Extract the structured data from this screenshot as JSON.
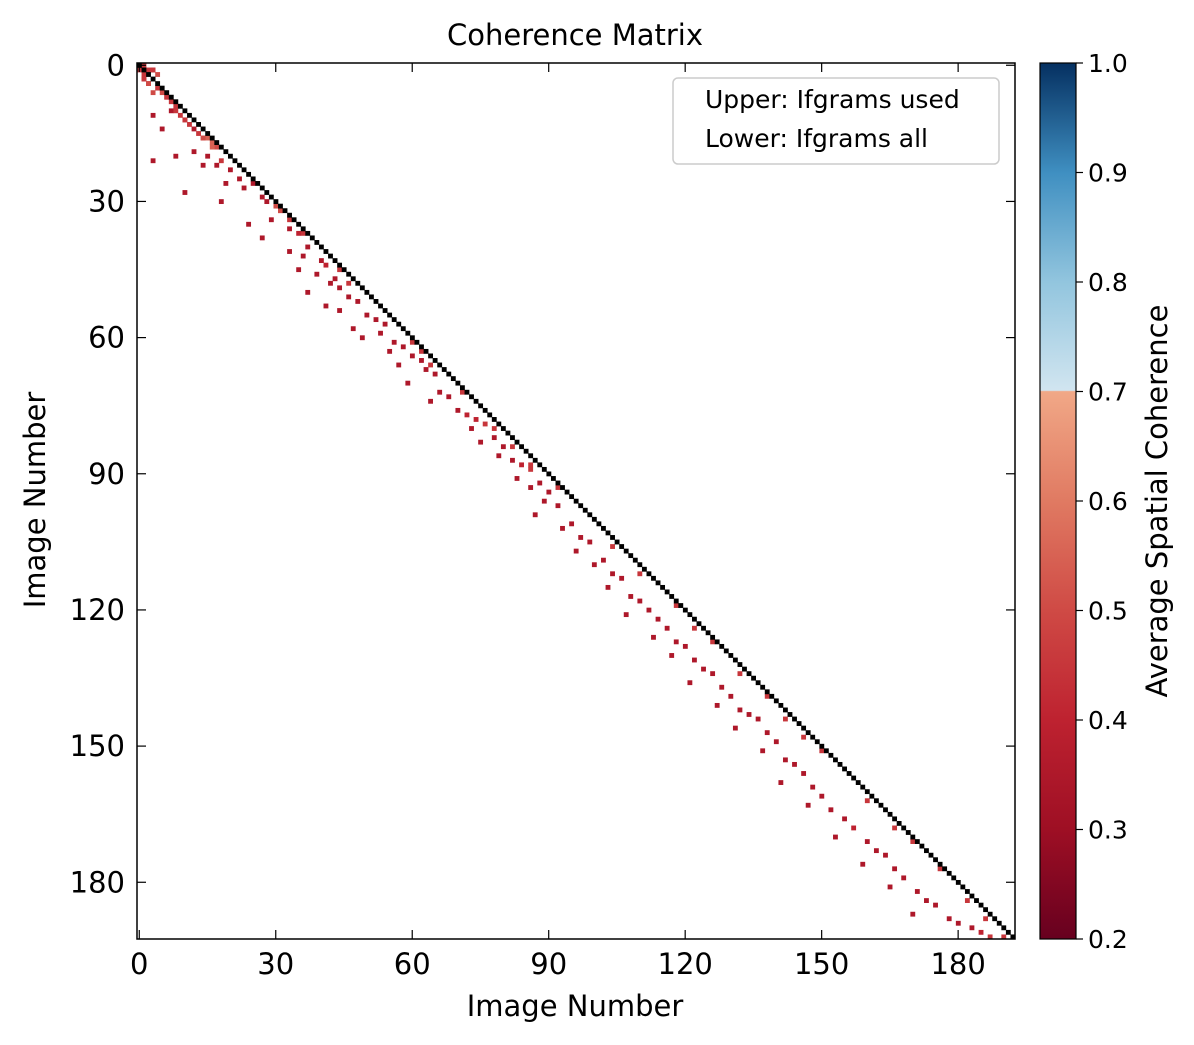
{
  "chart_data": {
    "type": "heatmap",
    "title": "Coherence Matrix",
    "xlabel": "Image Number",
    "ylabel": "Image Number",
    "n": 193,
    "xticks": [
      0,
      30,
      60,
      90,
      120,
      150,
      180
    ],
    "yticks": [
      0,
      30,
      60,
      90,
      120,
      150,
      180
    ],
    "legend": {
      "placement": "top-right",
      "entries": [
        "Upper: Ifgrams used",
        "Lower: Ifgrams all"
      ]
    },
    "colorbar": {
      "label": "Average Spatial Coherence",
      "range": [
        0.2,
        1.0
      ],
      "ticks": [
        "0.2",
        "0.3",
        "0.4",
        "0.5",
        "0.6",
        "0.7",
        "0.8",
        "0.9",
        "1.0"
      ],
      "stops": [
        {
          "v": 0.2,
          "color": "#67001f"
        },
        {
          "v": 0.3,
          "color": "#9e0f24"
        },
        {
          "v": 0.4,
          "color": "#be2230"
        },
        {
          "v": 0.5,
          "color": "#cf4a45"
        },
        {
          "v": 0.6,
          "color": "#e07a62"
        },
        {
          "v": 0.7,
          "color": "#f1a887"
        },
        {
          "v": 0.701,
          "color": "#d1e5f0"
        },
        {
          "v": 0.8,
          "color": "#92c5de"
        },
        {
          "v": 0.9,
          "color": "#3f8fc1"
        },
        {
          "v": 1.0,
          "color": "#053061"
        }
      ]
    },
    "diagonal_color": "#000000",
    "cells": [
      [
        1,
        0,
        0.45
      ],
      [
        2,
        1,
        0.45
      ],
      [
        3,
        1,
        0.45
      ],
      [
        4,
        2,
        0.5
      ],
      [
        1,
        3,
        0.45
      ],
      [
        2,
        4,
        0.45
      ],
      [
        4,
        5,
        0.45
      ],
      [
        3,
        6,
        0.5
      ],
      [
        5,
        6,
        0.5
      ],
      [
        6,
        7,
        0.45
      ],
      [
        7,
        8,
        0.45
      ],
      [
        8,
        9,
        0.45
      ],
      [
        7,
        10,
        0.35
      ],
      [
        9,
        11,
        0.45
      ],
      [
        3,
        11,
        0.35
      ],
      [
        10,
        12,
        0.35
      ],
      [
        11,
        13,
        0.45
      ],
      [
        5,
        14,
        0.35
      ],
      [
        12,
        14,
        0.35
      ],
      [
        13,
        15,
        0.45
      ],
      [
        14,
        16,
        0.5
      ],
      [
        15,
        16,
        0.55
      ],
      [
        16,
        17,
        0.55
      ],
      [
        17,
        18,
        0.5
      ],
      [
        12,
        19,
        0.35
      ],
      [
        15,
        20,
        0.35
      ],
      [
        8,
        20,
        0.35
      ],
      [
        3,
        21,
        0.35
      ],
      [
        14,
        22,
        0.35
      ],
      [
        17,
        22,
        0.35
      ],
      [
        18,
        21,
        0.45
      ],
      [
        20,
        23,
        0.35
      ],
      [
        22,
        25,
        0.35
      ],
      [
        25,
        26,
        0.35
      ],
      [
        19,
        26,
        0.35
      ],
      [
        23,
        27,
        0.35
      ],
      [
        10,
        28,
        0.35
      ],
      [
        27,
        29,
        0.35
      ],
      [
        18,
        30,
        0.35
      ],
      [
        28,
        30,
        0.35
      ],
      [
        30,
        31,
        0.5
      ],
      [
        31,
        32,
        0.5
      ],
      [
        29,
        34,
        0.35
      ],
      [
        24,
        35,
        0.35
      ],
      [
        33,
        36,
        0.35
      ],
      [
        35,
        37,
        0.4
      ],
      [
        27,
        38,
        0.35
      ],
      [
        37,
        40,
        0.35
      ],
      [
        33,
        41,
        0.35
      ],
      [
        36,
        42,
        0.35
      ],
      [
        40,
        43,
        0.35
      ],
      [
        41,
        44,
        0.4
      ],
      [
        35,
        45,
        0.35
      ],
      [
        39,
        46,
        0.35
      ],
      [
        43,
        47,
        0.35
      ],
      [
        42,
        48,
        0.35
      ],
      [
        44,
        49,
        0.35
      ],
      [
        37,
        50,
        0.35
      ],
      [
        46,
        51,
        0.35
      ],
      [
        48,
        52,
        0.35
      ],
      [
        41,
        53,
        0.35
      ],
      [
        44,
        54,
        0.35
      ],
      [
        50,
        55,
        0.35
      ],
      [
        52,
        56,
        0.35
      ],
      [
        54,
        57,
        0.35
      ],
      [
        47,
        58,
        0.35
      ],
      [
        53,
        59,
        0.35
      ],
      [
        49,
        60,
        0.35
      ],
      [
        56,
        61,
        0.35
      ],
      [
        58,
        62,
        0.35
      ],
      [
        55,
        63,
        0.35
      ],
      [
        60,
        64,
        0.35
      ],
      [
        62,
        65,
        0.35
      ],
      [
        57,
        66,
        0.35
      ],
      [
        63,
        67,
        0.35
      ],
      [
        65,
        68,
        0.35
      ],
      [
        59,
        70,
        0.35
      ],
      [
        66,
        72,
        0.35
      ],
      [
        68,
        73,
        0.35
      ],
      [
        64,
        74,
        0.35
      ],
      [
        70,
        76,
        0.35
      ],
      [
        72,
        77,
        0.4
      ],
      [
        74,
        78,
        0.4
      ],
      [
        76,
        79,
        0.45
      ],
      [
        73,
        80,
        0.35
      ],
      [
        78,
        82,
        0.35
      ],
      [
        75,
        83,
        0.35
      ],
      [
        80,
        84,
        0.35
      ],
      [
        79,
        86,
        0.35
      ],
      [
        82,
        87,
        0.35
      ],
      [
        84,
        88,
        0.4
      ],
      [
        86,
        89,
        0.45
      ],
      [
        83,
        91,
        0.35
      ],
      [
        88,
        92,
        0.35
      ],
      [
        86,
        93,
        0.35
      ],
      [
        90,
        94,
        0.35
      ],
      [
        89,
        96,
        0.35
      ],
      [
        92,
        97,
        0.35
      ],
      [
        87,
        99,
        0.35
      ],
      [
        95,
        101,
        0.35
      ],
      [
        93,
        102,
        0.35
      ],
      [
        97,
        104,
        0.35
      ],
      [
        99,
        105,
        0.35
      ],
      [
        96,
        107,
        0.35
      ],
      [
        102,
        109,
        0.35
      ],
      [
        100,
        110,
        0.35
      ],
      [
        104,
        112,
        0.35
      ],
      [
        106,
        113,
        0.35
      ],
      [
        103,
        115,
        0.35
      ],
      [
        108,
        117,
        0.35
      ],
      [
        110,
        118,
        0.35
      ],
      [
        112,
        120,
        0.35
      ],
      [
        107,
        121,
        0.35
      ],
      [
        114,
        122,
        0.35
      ],
      [
        116,
        124,
        0.35
      ],
      [
        113,
        126,
        0.35
      ],
      [
        118,
        127,
        0.35
      ],
      [
        120,
        128,
        0.35
      ],
      [
        117,
        130,
        0.35
      ],
      [
        122,
        131,
        0.35
      ],
      [
        124,
        133,
        0.35
      ],
      [
        126,
        134,
        0.35
      ],
      [
        121,
        136,
        0.35
      ],
      [
        128,
        137,
        0.35
      ],
      [
        130,
        139,
        0.35
      ],
      [
        127,
        141,
        0.35
      ],
      [
        132,
        142,
        0.35
      ],
      [
        134,
        143,
        0.35
      ],
      [
        136,
        144,
        0.35
      ],
      [
        131,
        146,
        0.35
      ],
      [
        138,
        147,
        0.35
      ],
      [
        140,
        149,
        0.35
      ],
      [
        137,
        151,
        0.35
      ],
      [
        142,
        153,
        0.35
      ],
      [
        144,
        154,
        0.35
      ],
      [
        146,
        156,
        0.35
      ],
      [
        141,
        158,
        0.35
      ],
      [
        148,
        159,
        0.35
      ],
      [
        150,
        161,
        0.35
      ],
      [
        147,
        163,
        0.35
      ],
      [
        152,
        164,
        0.35
      ],
      [
        155,
        166,
        0.35
      ],
      [
        157,
        168,
        0.4
      ],
      [
        153,
        170,
        0.35
      ],
      [
        160,
        171,
        0.35
      ],
      [
        162,
        173,
        0.35
      ],
      [
        164,
        174,
        0.35
      ],
      [
        159,
        176,
        0.35
      ],
      [
        166,
        177,
        0.35
      ],
      [
        168,
        179,
        0.35
      ],
      [
        165,
        181,
        0.35
      ],
      [
        171,
        182,
        0.35
      ],
      [
        173,
        184,
        0.35
      ],
      [
        175,
        185,
        0.35
      ],
      [
        170,
        187,
        0.35
      ],
      [
        178,
        188,
        0.35
      ],
      [
        180,
        189,
        0.35
      ],
      [
        183,
        190,
        0.35
      ],
      [
        185,
        191,
        0.4
      ],
      [
        187,
        192,
        0.45
      ],
      [
        0,
        1,
        0.45
      ],
      [
        1,
        2,
        0.45
      ],
      [
        1,
        3,
        0.45
      ],
      [
        2,
        4,
        0.5
      ],
      [
        3,
        1,
        0.45
      ],
      [
        6,
        7,
        0.45
      ],
      [
        8,
        10,
        0.45
      ],
      [
        10,
        12,
        0.45
      ],
      [
        14,
        16,
        0.5
      ],
      [
        16,
        18,
        0.55
      ],
      [
        31,
        32,
        0.5
      ],
      [
        33,
        34,
        0.45
      ],
      [
        36,
        37,
        0.45
      ],
      [
        44,
        45,
        0.45
      ],
      [
        46,
        48,
        0.45
      ],
      [
        60,
        61,
        0.45
      ],
      [
        62,
        63,
        0.45
      ],
      [
        64,
        66,
        0.45
      ],
      [
        71,
        72,
        0.45
      ],
      [
        78,
        80,
        0.45
      ],
      [
        82,
        84,
        0.45
      ],
      [
        86,
        88,
        0.45
      ],
      [
        92,
        93,
        0.45
      ],
      [
        104,
        106,
        0.45
      ],
      [
        110,
        112,
        0.45
      ],
      [
        118,
        119,
        0.45
      ],
      [
        122,
        124,
        0.45
      ],
      [
        126,
        127,
        0.45
      ],
      [
        132,
        134,
        0.45
      ],
      [
        138,
        139,
        0.45
      ],
      [
        142,
        144,
        0.45
      ],
      [
        146,
        148,
        0.45
      ],
      [
        150,
        151,
        0.45
      ],
      [
        160,
        162,
        0.45
      ],
      [
        166,
        168,
        0.45
      ],
      [
        170,
        171,
        0.45
      ],
      [
        176,
        177,
        0.45
      ],
      [
        182,
        184,
        0.45
      ],
      [
        186,
        188,
        0.45
      ],
      [
        190,
        192,
        0.45
      ]
    ]
  }
}
